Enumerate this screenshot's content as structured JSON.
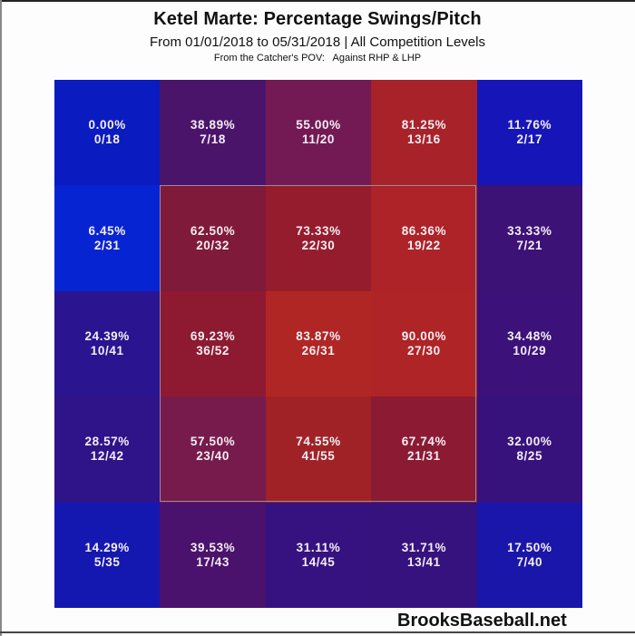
{
  "header": {
    "title": "Ketel Marte: Percentage Swings/Pitch",
    "subtitle": "From 01/01/2018 to 05/31/2018 | All Competition Levels",
    "subtitle2": "From the Catcher's POV:   Against RHP & LHP"
  },
  "watermark": "BrooksBaseball.net",
  "grid": {
    "rows": [
      [
        {
          "pct": "0.00%",
          "frac": "0/18",
          "color": "#0a1bbf"
        },
        {
          "pct": "38.89%",
          "frac": "7/18",
          "color": "#4b146b"
        },
        {
          "pct": "55.00%",
          "frac": "11/20",
          "color": "#731a55"
        },
        {
          "pct": "81.25%",
          "frac": "13/16",
          "color": "#a8222a"
        },
        {
          "pct": "11.76%",
          "frac": "2/17",
          "color": "#1616b8"
        }
      ],
      [
        {
          "pct": "6.45%",
          "frac": "2/31",
          "color": "#0724d2"
        },
        {
          "pct": "62.50%",
          "frac": "20/32",
          "color": "#801a3b"
        },
        {
          "pct": "73.33%",
          "frac": "22/30",
          "color": "#951c2c"
        },
        {
          "pct": "86.36%",
          "frac": "19/22",
          "color": "#ad2327"
        },
        {
          "pct": "33.33%",
          "frac": "7/21",
          "color": "#3d1277"
        }
      ],
      [
        {
          "pct": "24.39%",
          "frac": "10/41",
          "color": "#2a1490"
        },
        {
          "pct": "69.23%",
          "frac": "36/52",
          "color": "#8d1a30"
        },
        {
          "pct": "83.87%",
          "frac": "26/31",
          "color": "#b02624"
        },
        {
          "pct": "90.00%",
          "frac": "27/30",
          "color": "#af2426"
        },
        {
          "pct": "34.48%",
          "frac": "10/29",
          "color": "#3c1179"
        }
      ],
      [
        {
          "pct": "28.57%",
          "frac": "12/42",
          "color": "#2e1389"
        },
        {
          "pct": "57.50%",
          "frac": "23/40",
          "color": "#771b4d"
        },
        {
          "pct": "74.55%",
          "frac": "41/55",
          "color": "#a02226"
        },
        {
          "pct": "67.74%",
          "frac": "21/31",
          "color": "#8c1a33"
        },
        {
          "pct": "32.00%",
          "frac": "8/25",
          "color": "#37127c"
        }
      ],
      [
        {
          "pct": "14.29%",
          "frac": "5/35",
          "color": "#1418b0"
        },
        {
          "pct": "39.53%",
          "frac": "17/43",
          "color": "#4a126c"
        },
        {
          "pct": "31.11%",
          "frac": "14/45",
          "color": "#351280"
        },
        {
          "pct": "31.71%",
          "frac": "13/41",
          "color": "#36127f"
        },
        {
          "pct": "17.50%",
          "frac": "7/40",
          "color": "#1a16a9"
        }
      ]
    ]
  },
  "chart_data": {
    "type": "heatmap",
    "title": "Ketel Marte: Percentage Swings/Pitch",
    "subtitle": "From 01/01/2018 to 05/31/2018 | All Competition Levels",
    "note": "From the Catcher's POV: Against RHP & LHP",
    "xlabel": "",
    "ylabel": "",
    "rows": 5,
    "cols": 5,
    "strike_zone": "inner 3x3 cells",
    "values": [
      [
        0.0,
        38.89,
        55.0,
        81.25,
        11.76
      ],
      [
        6.45,
        62.5,
        73.33,
        86.36,
        33.33
      ],
      [
        24.39,
        69.23,
        83.87,
        90.0,
        34.48
      ],
      [
        28.57,
        57.5,
        74.55,
        67.74,
        32.0
      ],
      [
        14.29,
        39.53,
        31.11,
        31.71,
        17.5
      ]
    ],
    "fractions": [
      [
        "0/18",
        "7/18",
        "11/20",
        "13/16",
        "2/17"
      ],
      [
        "2/31",
        "20/32",
        "22/30",
        "19/22",
        "7/21"
      ],
      [
        "10/41",
        "36/52",
        "26/31",
        "27/30",
        "10/29"
      ],
      [
        "12/42",
        "23/40",
        "41/55",
        "21/31",
        "8/25"
      ],
      [
        "5/35",
        "17/43",
        "14/45",
        "13/41",
        "7/40"
      ]
    ],
    "color_scale": {
      "low": "#0a1bbf",
      "high": "#b02624"
    },
    "source": "BrooksBaseball.net"
  }
}
